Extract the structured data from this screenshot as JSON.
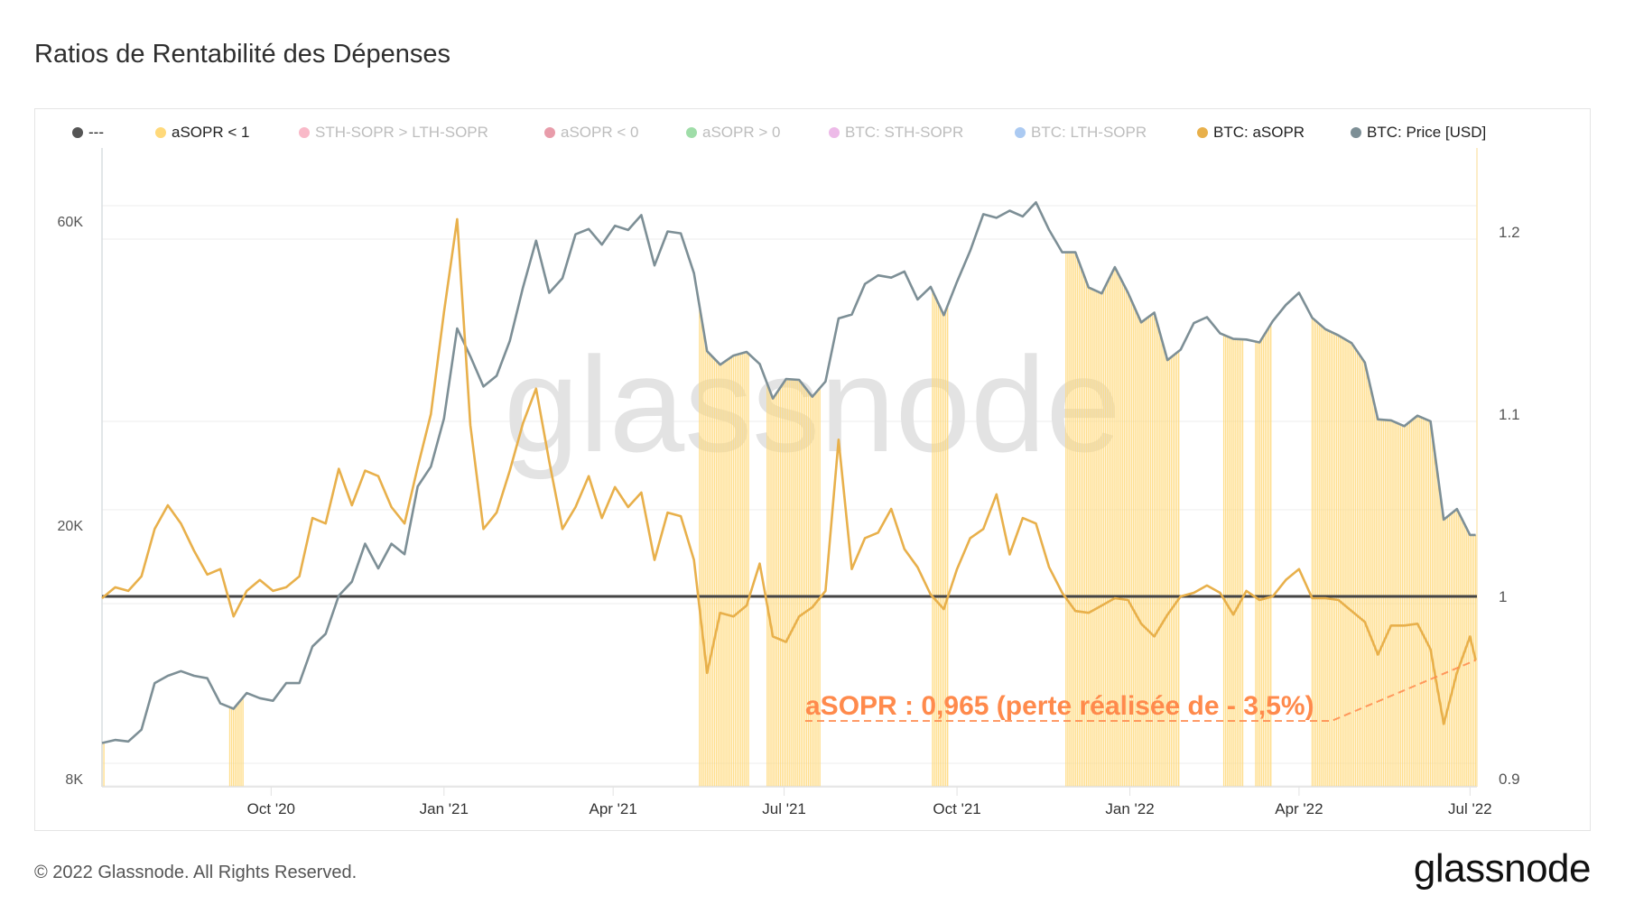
{
  "title": "Ratios de Rentabilité des Dépenses",
  "footer": "© 2022 Glassnode. All Rights Reserved.",
  "logo": "glassnode",
  "watermark": "glassnode",
  "legend": [
    {
      "label": "---",
      "color": "#555555",
      "active": true
    },
    {
      "label": "aSOPR < 1",
      "color": "#ffd97a",
      "active": true
    },
    {
      "label": "STH-SOPR > LTH-SOPR",
      "color": "#f7a1b5",
      "active": false
    },
    {
      "label": "aSOPR < 0",
      "color": "#e07b8e",
      "active": false
    },
    {
      "label": "aSOPR > 0",
      "color": "#7fd18b",
      "active": false
    },
    {
      "label": "BTC: STH-SOPR",
      "color": "#e7a3e0",
      "active": false
    },
    {
      "label": "BTC: LTH-SOPR",
      "color": "#8fb8ee",
      "active": false
    },
    {
      "label": "BTC: aSOPR",
      "color": "#e8b04b",
      "active": true
    },
    {
      "label": "BTC: Price [USD]",
      "color": "#7d8f96",
      "active": true
    }
  ],
  "chart_data": {
    "type": "line",
    "title": "Ratios de Rentabilité des Dépenses",
    "grid": true,
    "legend_position": "top",
    "y_left": {
      "scale": "log",
      "range": [
        8000,
        60000
      ],
      "ticks": [
        {
          "value": 60000,
          "label": "60K"
        },
        {
          "value": 20000,
          "label": "20K"
        },
        {
          "value": 8000,
          "label": "8K"
        }
      ]
    },
    "y_right": {
      "scale": "linear",
      "range": [
        0.9,
        1.2
      ],
      "ticks": [
        {
          "value": 1.2,
          "label": "1.2"
        },
        {
          "value": 1.1,
          "label": "1.1"
        },
        {
          "value": 1.0,
          "label": "1"
        },
        {
          "value": 0.9,
          "label": "0.9"
        }
      ]
    },
    "x_ticks": [
      {
        "date": "2020-10-01",
        "label": "Oct '20"
      },
      {
        "date": "2021-01-01",
        "label": "Jan '21"
      },
      {
        "date": "2021-04-01",
        "label": "Apr '21"
      },
      {
        "date": "2021-07-01",
        "label": "Jul '21"
      },
      {
        "date": "2021-10-01",
        "label": "Oct '21"
      },
      {
        "date": "2022-01-01",
        "label": "Jan '22"
      },
      {
        "date": "2022-04-01",
        "label": "Apr '22"
      },
      {
        "date": "2022-07-01",
        "label": "Jul '22"
      }
    ],
    "reference_line": {
      "value": 1.0,
      "axis": "right",
      "color": "#444444"
    },
    "shading": {
      "label": "aSOPR < 1",
      "color": "#ffd97a"
    },
    "annotation": {
      "text": "aSOPR : 0,965 (perte réalisée de - 3,5%)",
      "color": "#ff8a4c",
      "value": 0.965,
      "date": "2022-07-04"
    },
    "x": [
      "2020-07-03",
      "2020-07-10",
      "2020-07-17",
      "2020-07-24",
      "2020-07-31",
      "2020-08-07",
      "2020-08-14",
      "2020-08-21",
      "2020-08-28",
      "2020-09-04",
      "2020-09-11",
      "2020-09-18",
      "2020-09-25",
      "2020-10-02",
      "2020-10-09",
      "2020-10-16",
      "2020-10-23",
      "2020-10-30",
      "2020-11-06",
      "2020-11-13",
      "2020-11-20",
      "2020-11-27",
      "2020-12-04",
      "2020-12-11",
      "2020-12-18",
      "2020-12-25",
      "2021-01-01",
      "2021-01-08",
      "2021-01-15",
      "2021-01-22",
      "2021-01-29",
      "2021-02-05",
      "2021-02-12",
      "2021-02-19",
      "2021-02-26",
      "2021-03-05",
      "2021-03-12",
      "2021-03-19",
      "2021-03-26",
      "2021-04-02",
      "2021-04-09",
      "2021-04-16",
      "2021-04-23",
      "2021-04-30",
      "2021-05-07",
      "2021-05-14",
      "2021-05-21",
      "2021-05-28",
      "2021-06-04",
      "2021-06-11",
      "2021-06-18",
      "2021-06-25",
      "2021-07-02",
      "2021-07-09",
      "2021-07-16",
      "2021-07-23",
      "2021-07-30",
      "2021-08-06",
      "2021-08-13",
      "2021-08-20",
      "2021-08-27",
      "2021-09-03",
      "2021-09-10",
      "2021-09-17",
      "2021-09-24",
      "2021-10-01",
      "2021-10-08",
      "2021-10-15",
      "2021-10-22",
      "2021-10-29",
      "2021-11-05",
      "2021-11-12",
      "2021-11-19",
      "2021-11-26",
      "2021-12-03",
      "2021-12-10",
      "2021-12-17",
      "2021-12-24",
      "2021-12-31",
      "2022-01-07",
      "2022-01-14",
      "2022-01-21",
      "2022-01-28",
      "2022-02-04",
      "2022-02-11",
      "2022-02-18",
      "2022-02-25",
      "2022-03-04",
      "2022-03-11",
      "2022-03-18",
      "2022-03-25",
      "2022-04-01",
      "2022-04-08",
      "2022-04-15",
      "2022-04-22",
      "2022-04-29",
      "2022-05-06",
      "2022-05-13",
      "2022-05-20",
      "2022-05-27",
      "2022-06-03",
      "2022-06-10",
      "2022-06-17",
      "2022-06-24",
      "2022-07-01",
      "2022-07-04"
    ],
    "series": [
      {
        "name": "BTC: aSOPR",
        "axis": "right",
        "color": "#e8b04b",
        "values": [
          0.999,
          1.005,
          1.003,
          1.011,
          1.037,
          1.05,
          1.04,
          1.025,
          1.012,
          1.015,
          0.989,
          1.003,
          1.009,
          1.003,
          1.005,
          1.011,
          1.043,
          1.04,
          1.07,
          1.05,
          1.069,
          1.066,
          1.049,
          1.04,
          1.071,
          1.1,
          1.156,
          1.207,
          1.094,
          1.037,
          1.046,
          1.069,
          1.095,
          1.114,
          1.074,
          1.037,
          1.049,
          1.066,
          1.043,
          1.06,
          1.049,
          1.057,
          1.02,
          1.046,
          1.044,
          1.02,
          0.958,
          0.991,
          0.989,
          0.995,
          1.018,
          0.978,
          0.975,
          0.989,
          0.994,
          1.003,
          1.086,
          1.015,
          1.032,
          1.035,
          1.048,
          1.026,
          1.016,
          1.001,
          0.993,
          1.015,
          1.032,
          1.037,
          1.056,
          1.023,
          1.043,
          1.04,
          1.016,
          1.002,
          0.992,
          0.991,
          0.995,
          0.999,
          0.998,
          0.985,
          0.978,
          0.99,
          1.0,
          1.002,
          1.006,
          1.002,
          0.99,
          1.003,
          0.998,
          1.0,
          1.009,
          1.015,
          0.999,
          0.999,
          0.998,
          0.992,
          0.986,
          0.968,
          0.984,
          0.984,
          0.985,
          0.971,
          0.93,
          0.958,
          0.978,
          0.965
        ]
      },
      {
        "name": "BTC: Price [USD]",
        "axis": "left",
        "color": "#7d8f96",
        "values": [
          9100,
          9200,
          9150,
          9550,
          11300,
          11600,
          11800,
          11600,
          11500,
          10500,
          10300,
          10900,
          10700,
          10600,
          11300,
          11300,
          12900,
          13500,
          15500,
          16300,
          18700,
          17100,
          18700,
          18000,
          23000,
          24700,
          29400,
          40700,
          36800,
          33000,
          34300,
          38900,
          47200,
          55900,
          46300,
          48800,
          57200,
          58300,
          55100,
          59000,
          58100,
          61300,
          51100,
          57800,
          57400,
          49700,
          37500,
          35700,
          36900,
          37400,
          35800,
          31600,
          33900,
          33800,
          31800,
          33600,
          42200,
          42800,
          47800,
          49300,
          48900,
          50000,
          45200,
          47300,
          42700,
          48200,
          53900,
          61500,
          60700,
          62300,
          61000,
          64200,
          58100,
          53600,
          53600,
          47200,
          46200,
          50800,
          46300,
          41600,
          43100,
          36300,
          37700,
          41500,
          42400,
          40000,
          39200,
          39100,
          38700,
          41800,
          44300,
          46300,
          42300,
          40600,
          39700,
          38600,
          36000,
          29300,
          29200,
          28600,
          29700,
          29100,
          20400,
          21200,
          19300,
          19300
        ]
      }
    ]
  }
}
